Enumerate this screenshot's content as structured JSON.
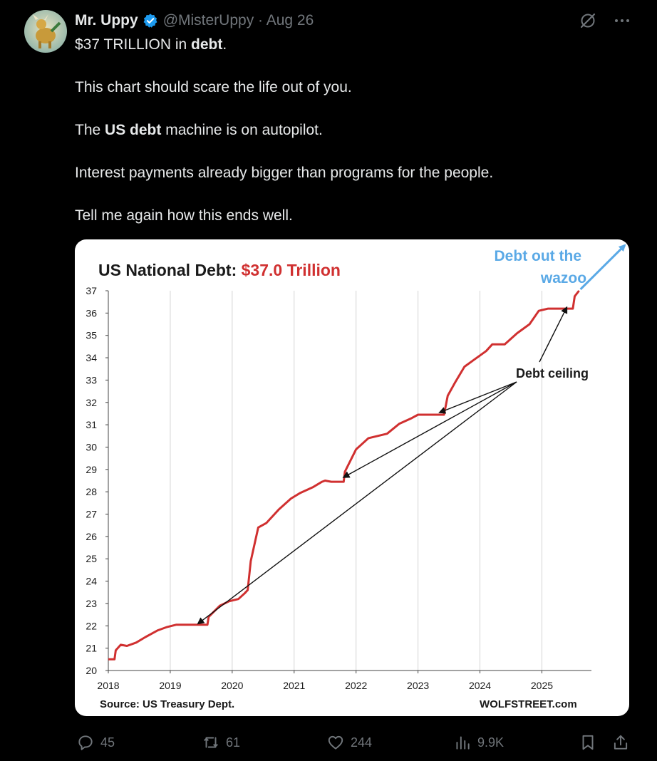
{
  "tweet": {
    "author_name": "Mr. Uppy",
    "handle": "@MisterUppy",
    "date": "Aug 26",
    "handle_date": "@MisterUppy · Aug 26",
    "lines": [
      "This chart should scare the life out of you.",
      "Interest payments already bigger than programs for the people.",
      "Tell me again how this ends well."
    ],
    "line1_prefix": "$37 TRILLION in ",
    "line1_bold": "debt",
    "line1_suffix": ".",
    "line3_prefix": "The ",
    "line3_bold": "US debt",
    "line3_suffix": " machine is on autopilot."
  },
  "actions": {
    "replies": "45",
    "reposts": "61",
    "likes": "244",
    "views": "9.9K"
  },
  "icons": [
    "verified-badge-icon",
    "grok-icon",
    "more-icon",
    "reply-icon",
    "repost-icon",
    "like-icon",
    "views-icon",
    "bookmark-icon",
    "share-icon"
  ],
  "colors": {
    "accent": "#1d9bf0",
    "series": "#d03030",
    "annotation_blue": "#5aa9e6"
  },
  "chart_data": {
    "type": "line",
    "title_prefix": "US National Debt: ",
    "title_value": "$37.0 Trillion",
    "source": "Source: US Treasury Dept.",
    "credit": "WOLFSTREET.com",
    "annotation_ceiling": "Debt ceiling",
    "annotation_wazoo_line1": "Debt out the",
    "annotation_wazoo_line2": "wazoo",
    "xlim": [
      2018,
      2025.8
    ],
    "ylim": [
      20,
      37
    ],
    "x_ticks": [
      "2018",
      "2019",
      "2020",
      "2021",
      "2022",
      "2023",
      "2024",
      "2025"
    ],
    "y_ticks": [
      "20",
      "21",
      "22",
      "23",
      "24",
      "25",
      "26",
      "27",
      "28",
      "29",
      "30",
      "31",
      "32",
      "33",
      "34",
      "35",
      "36",
      "37"
    ],
    "grid": "vertical",
    "series": [
      {
        "values": [
          [
            2018.0,
            20.5
          ],
          [
            2018.1,
            20.5
          ],
          [
            2018.12,
            20.9
          ],
          [
            2018.2,
            21.15
          ],
          [
            2018.3,
            21.1
          ],
          [
            2018.45,
            21.25
          ],
          [
            2018.6,
            21.5
          ],
          [
            2018.8,
            21.8
          ],
          [
            2018.95,
            21.95
          ],
          [
            2019.1,
            22.05
          ],
          [
            2019.2,
            22.05
          ],
          [
            2019.6,
            22.05
          ],
          [
            2019.62,
            22.4
          ],
          [
            2019.8,
            22.9
          ],
          [
            2019.95,
            23.1
          ],
          [
            2020.1,
            23.2
          ],
          [
            2020.2,
            23.45
          ],
          [
            2020.25,
            23.6
          ],
          [
            2020.3,
            24.9
          ],
          [
            2020.42,
            26.4
          ],
          [
            2020.55,
            26.6
          ],
          [
            2020.75,
            27.2
          ],
          [
            2020.95,
            27.7
          ],
          [
            2021.1,
            27.95
          ],
          [
            2021.3,
            28.2
          ],
          [
            2021.45,
            28.45
          ],
          [
            2021.5,
            28.5
          ],
          [
            2021.6,
            28.45
          ],
          [
            2021.8,
            28.45
          ],
          [
            2021.82,
            28.9
          ],
          [
            2022.0,
            29.9
          ],
          [
            2022.2,
            30.4
          ],
          [
            2022.5,
            30.6
          ],
          [
            2022.7,
            31.05
          ],
          [
            2022.9,
            31.3
          ],
          [
            2023.0,
            31.45
          ],
          [
            2023.1,
            31.45
          ],
          [
            2023.42,
            31.45
          ],
          [
            2023.48,
            32.3
          ],
          [
            2023.6,
            32.9
          ],
          [
            2023.75,
            33.6
          ],
          [
            2023.9,
            33.9
          ],
          [
            2024.1,
            34.3
          ],
          [
            2024.2,
            34.6
          ],
          [
            2024.4,
            34.6
          ],
          [
            2024.6,
            35.1
          ],
          [
            2024.8,
            35.5
          ],
          [
            2024.95,
            36.1
          ],
          [
            2025.1,
            36.2
          ],
          [
            2025.2,
            36.2
          ],
          [
            2025.5,
            36.2
          ],
          [
            2025.53,
            36.75
          ],
          [
            2025.6,
            37.0
          ]
        ]
      }
    ]
  }
}
